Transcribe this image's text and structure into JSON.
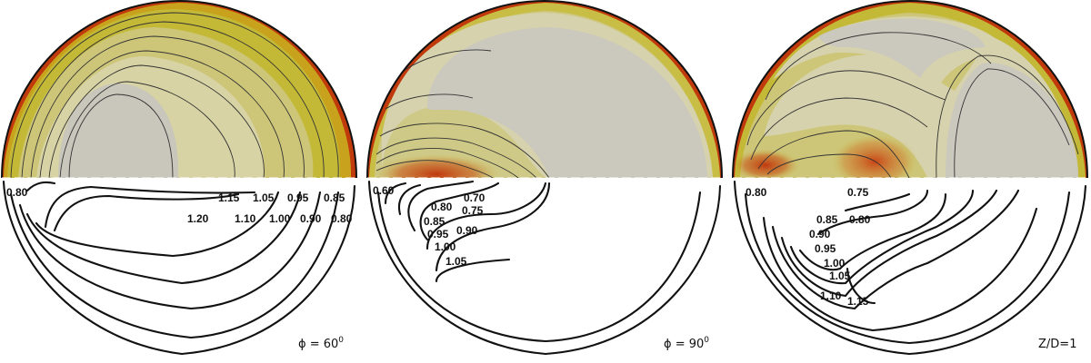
{
  "panels": [
    {
      "id": "phi60",
      "caption_prefix": "ϕ = 60",
      "caption_sup": "0",
      "colors": {
        "core": "#c9c6bb",
        "ring1": "#d7d3a4",
        "ring2": "#cdc679",
        "ring3": "#c3b936",
        "wall": "#c03a0c"
      },
      "labels": [
        "0.80",
        "1.15",
        "1.05",
        "0.95",
        "0.85",
        "1.20",
        "1.10",
        "1.00",
        "0.90",
        "0.80"
      ]
    },
    {
      "id": "phi90",
      "caption_prefix": "ϕ = 90",
      "caption_sup": "0",
      "colors": {
        "core": "#cbc8be",
        "ring1": "#d6d2ad",
        "ring2": "#cfc987",
        "ring3": "#c8bd45",
        "wall": "#c03a0c"
      },
      "labels": [
        "0.60",
        "0.80",
        "0.70",
        "0.75",
        "0.85",
        "0.90",
        "0.95",
        "1.00",
        "1.05"
      ]
    },
    {
      "id": "zd1",
      "caption_prefix": "Z/D=1",
      "caption_sup": "",
      "colors": {
        "core": "#cbc8be",
        "ring1": "#d6d2ad",
        "ring2": "#cdc679",
        "ring3": "#c3b936",
        "wall": "#c03a0c"
      },
      "labels": [
        "0.80",
        "0.75",
        "0.85",
        "0.80",
        "0.90",
        "0.95",
        "1.00",
        "1.05",
        "1.10",
        "1.15"
      ]
    }
  ]
}
